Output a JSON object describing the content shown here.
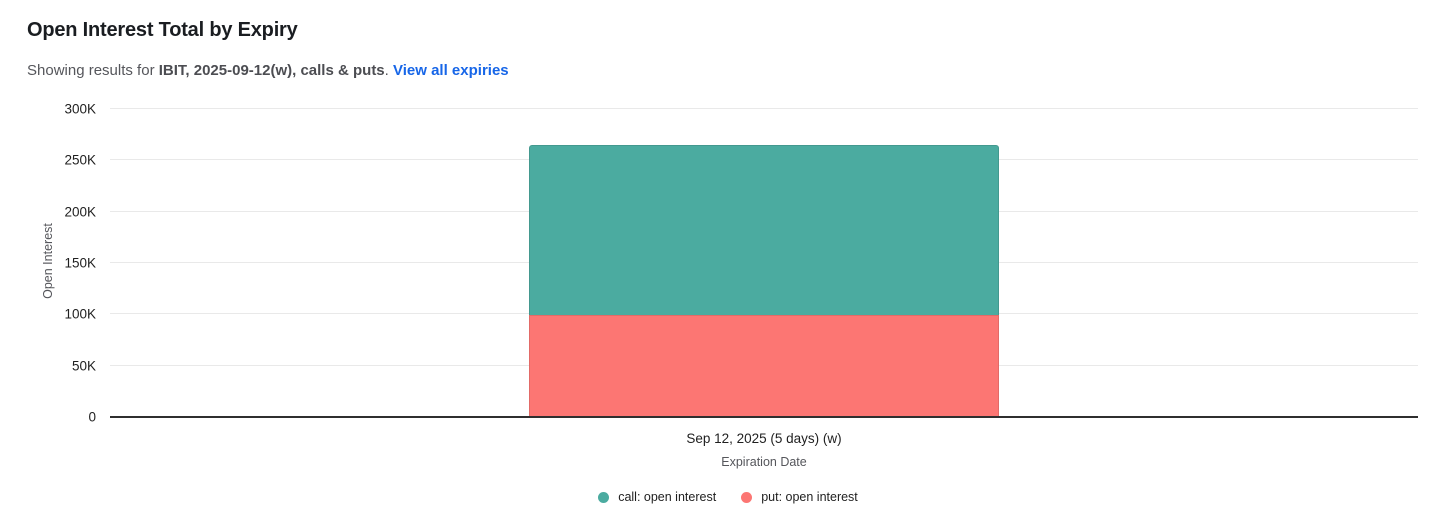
{
  "header": {
    "title": "Open Interest Total by Expiry",
    "subtitle_prefix": "Showing results for ",
    "subtitle_emphasis": "IBIT, 2025-09-12(w), calls & puts",
    "subtitle_separator": ". ",
    "link_label": "View all expiries",
    "link_color": "#1766e8"
  },
  "chart_data": {
    "type": "bar",
    "stacked": true,
    "categories": [
      "Sep 12, 2025 (5 days) (w)"
    ],
    "series": [
      {
        "name": "call: open interest",
        "values": [
          166000
        ],
        "color": "#4BABA0"
      },
      {
        "name": "put: open interest",
        "values": [
          98000
        ],
        "color": "#FC7673"
      }
    ],
    "title": "Open Interest Total by Expiry",
    "xlabel": "Expiration Date",
    "ylabel": "Open Interest",
    "ylim": [
      0,
      300000
    ],
    "ytick_step": 50000,
    "ytick_labels": [
      "0",
      "50K",
      "100K",
      "150K",
      "200K",
      "250K",
      "300K"
    ],
    "grid": true,
    "gridline_color": "#e9e9e9",
    "axis_line_color": "#2f2f2f",
    "legend_position": "bottom-center"
  }
}
